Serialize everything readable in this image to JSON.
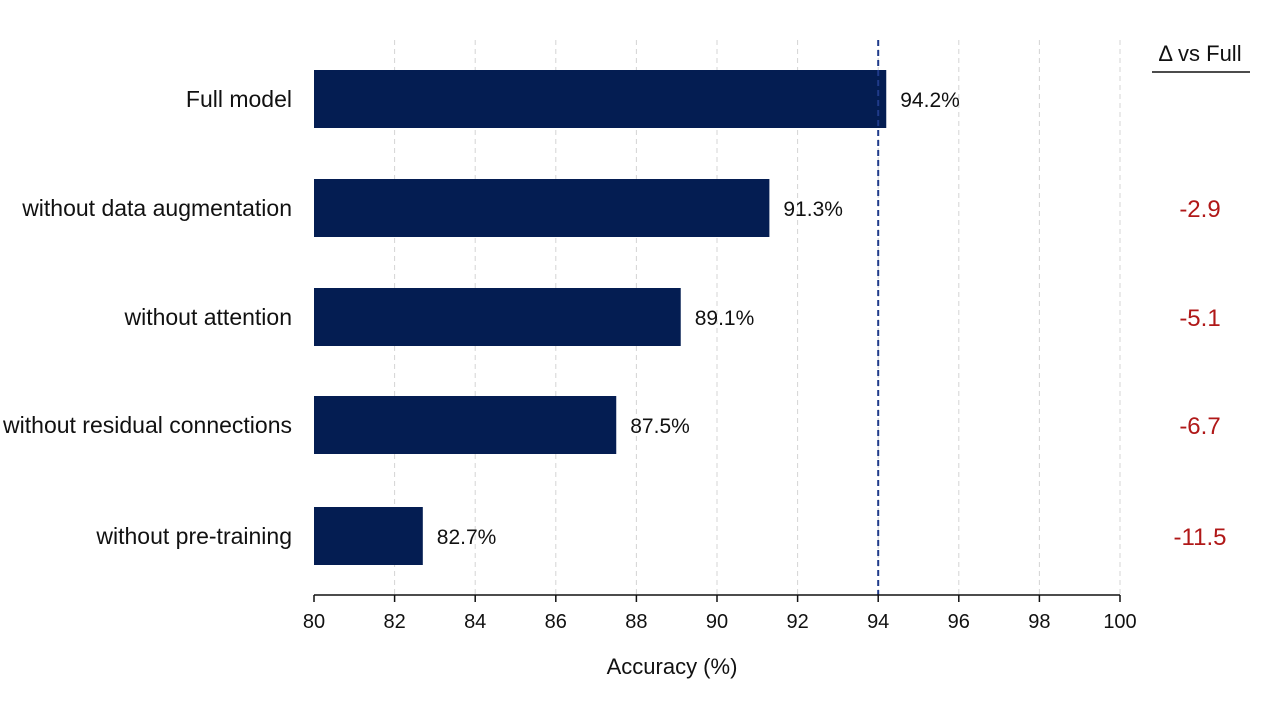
{
  "chart_data": {
    "type": "bar",
    "orientation": "horizontal",
    "categories": [
      "Full model",
      "without data augmentation",
      "without attention",
      "without residual connections",
      "without pre-training"
    ],
    "values": [
      94.2,
      91.3,
      89.1,
      87.5,
      82.7
    ],
    "value_labels": [
      "94.2%",
      "91.3%",
      "89.1%",
      "87.5%",
      "82.7%"
    ],
    "xlabel": "Accuracy (%)",
    "xlim": [
      80,
      100
    ],
    "xticks": [
      80,
      82,
      84,
      86,
      88,
      90,
      92,
      94,
      96,
      98,
      100
    ],
    "reference_line": 94,
    "grid": true,
    "delta_header": "Δ vs Full",
    "deltas": [
      "",
      "-2.9",
      "-5.1",
      "-6.7",
      "-11.5"
    ]
  },
  "colors": {
    "bar": "#041d52",
    "reference_line": "#1f3a8a",
    "delta": "#b01818",
    "grid": "#d4d4d4",
    "axis": "#111111"
  }
}
